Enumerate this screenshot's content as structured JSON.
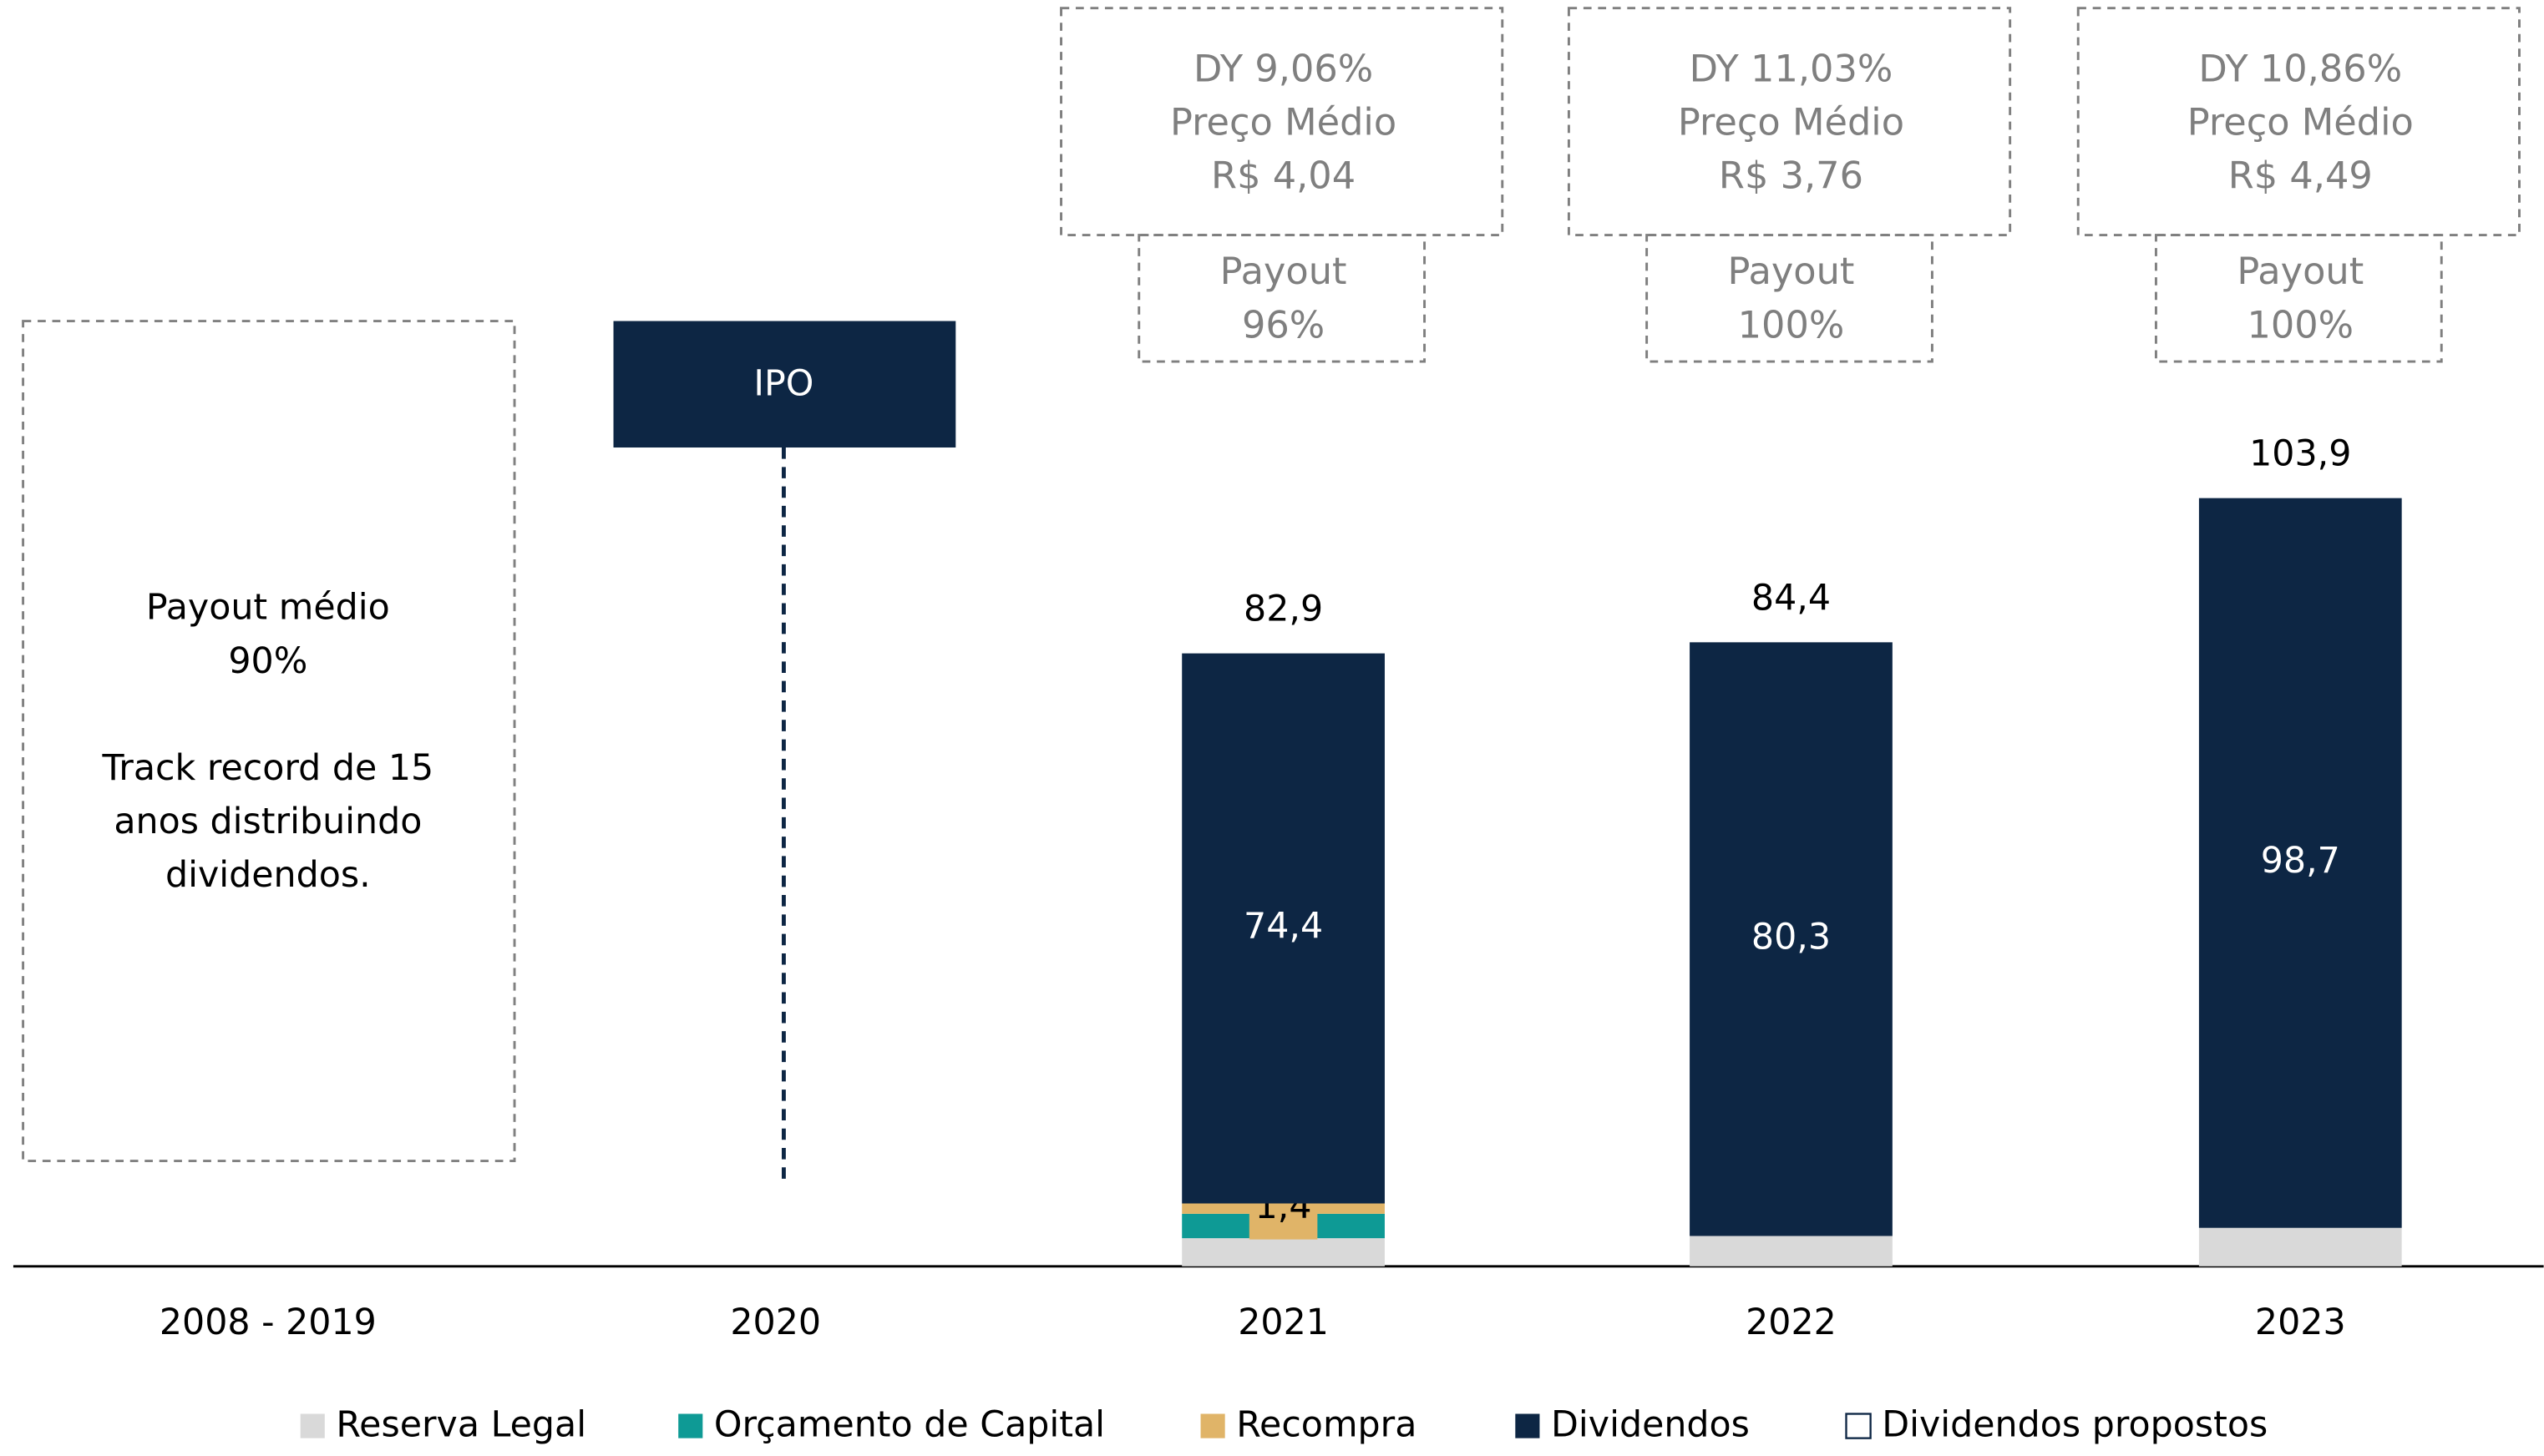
{
  "chart_data": {
    "type": "stacked_bar",
    "categories": [
      "2008 - 2019",
      "2020",
      "2021",
      "2022",
      "2023"
    ],
    "series": [
      {
        "name": "Reserva Legal",
        "color": "#d9d9d9",
        "values": [
          null,
          null,
          3.8,
          4.1,
          5.2
        ]
      },
      {
        "name": "Orçamento de Capital",
        "color": "#0e9a95",
        "values": [
          null,
          null,
          3.3,
          null,
          null
        ]
      },
      {
        "name": "Recompra",
        "color": "#e0b468",
        "values": [
          null,
          null,
          1.4,
          null,
          null
        ],
        "value_labels": [
          null,
          null,
          "1,4",
          null,
          null
        ]
      },
      {
        "name": "Dividendos",
        "color": "#0d2644",
        "values": [
          null,
          null,
          74.4,
          80.3,
          98.7
        ],
        "value_labels": [
          null,
          null,
          "74,4",
          "80,3",
          "98,7"
        ]
      },
      {
        "name": "Dividendos propostos",
        "color": "#ffffff",
        "values": [
          null,
          null,
          null,
          null,
          null
        ]
      }
    ],
    "totals": [
      null,
      null,
      82.9,
      84.4,
      103.9
    ],
    "total_labels": [
      null,
      null,
      "82,9",
      "84,4",
      "103,9"
    ],
    "annotations": {
      "history": [
        "Payout médio",
        "90%",
        "Track record de 15",
        "anos distribuindo",
        "dividendos."
      ],
      "ipo": "IPO",
      "yield_boxes": [
        {
          "category": 2,
          "lines": [
            "DY 9,06%",
            "Preço Médio",
            "R$ 4,04"
          ],
          "payout": [
            "Payout",
            "96%"
          ]
        },
        {
          "category": 3,
          "lines": [
            "DY 11,03%",
            "Preço Médio",
            "R$ 3,76"
          ],
          "payout": [
            "Payout",
            "100%"
          ]
        },
        {
          "category": 4,
          "lines": [
            "DY 10,86%",
            "Preço Médio",
            "R$ 4,49"
          ],
          "payout": [
            "Payout",
            "100%"
          ]
        }
      ]
    }
  }
}
